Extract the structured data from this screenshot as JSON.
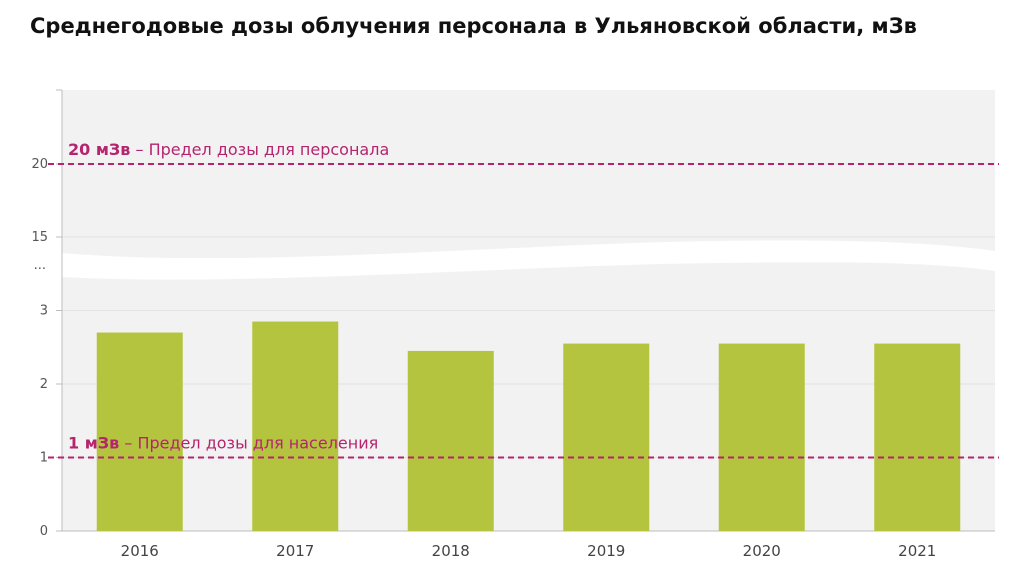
{
  "chart_data": {
    "type": "bar",
    "title": "Среднегодовые дозы облучения персонала в Ульяновской области, мЗв",
    "xlabel": "",
    "ylabel": "",
    "categories": [
      "2016",
      "2017",
      "2018",
      "2019",
      "2020",
      "2021"
    ],
    "values": [
      2.7,
      2.85,
      2.45,
      2.55,
      2.55,
      2.55
    ],
    "bar_color": "#b5c43f",
    "axis_break": {
      "from": 3.5,
      "to": 14,
      "marker": "..."
    },
    "y_ticks_lower": [
      0,
      1,
      2,
      3
    ],
    "y_ticks_upper": [
      15,
      20
    ],
    "ylim_lower": [
      0,
      3.5
    ],
    "ylim_upper": [
      14,
      25
    ],
    "grid": true,
    "plot_background": "#f2f2f2",
    "reference_lines": [
      {
        "y": 20,
        "value_label": "20 мЗв",
        "text": " – Предел дозы для персонала",
        "color": "#b5246e"
      },
      {
        "y": 1,
        "value_label": "1 мЗв",
        "text": " – Предел дозы для населения",
        "color": "#b5246e"
      }
    ]
  }
}
